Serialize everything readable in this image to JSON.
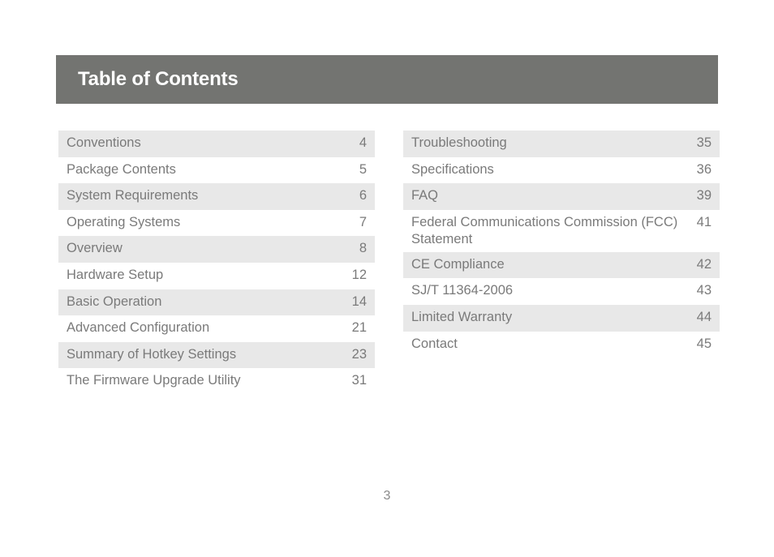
{
  "header": {
    "title": "Table of Contents"
  },
  "toc_left": [
    {
      "title": "Conventions",
      "page": "4"
    },
    {
      "title": "Package Contents",
      "page": "5"
    },
    {
      "title": "System Requirements",
      "page": "6"
    },
    {
      "title": "Operating Systems",
      "page": "7"
    },
    {
      "title": "Overview",
      "page": "8"
    },
    {
      "title": "Hardware Setup",
      "page": "12"
    },
    {
      "title": "Basic Operation",
      "page": "14"
    },
    {
      "title": "Advanced Configuration",
      "page": "21"
    },
    {
      "title": "Summary of Hotkey Settings",
      "page": "23"
    },
    {
      "title": "The Firmware Upgrade Utility",
      "page": "31"
    }
  ],
  "toc_right": [
    {
      "title": "Troubleshooting",
      "page": "35"
    },
    {
      "title": "Specifications",
      "page": "36"
    },
    {
      "title": "FAQ",
      "page": "39"
    },
    {
      "title": "Federal Communications Commission (FCC) Statement",
      "page": "41"
    },
    {
      "title": "CE Compliance",
      "page": "42"
    },
    {
      "title": "SJ/T 11364-2006",
      "page": "43"
    },
    {
      "title": "Limited Warranty",
      "page": "44"
    },
    {
      "title": "Contact",
      "page": "45"
    }
  ],
  "footer": {
    "page_number": "3"
  },
  "colors": {
    "header_bg": "#737471",
    "row_shade": "#e8e8e8",
    "text": "#7a7a7a"
  }
}
